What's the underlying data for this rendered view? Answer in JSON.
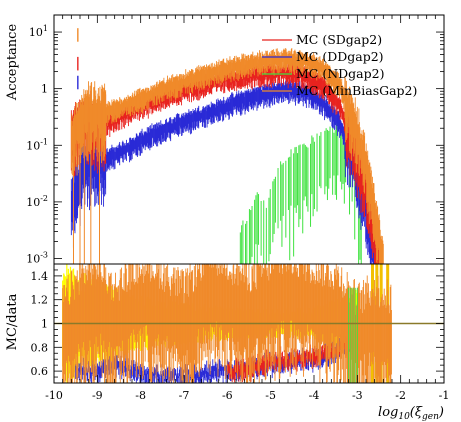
{
  "chart_data": [
    {
      "panel": "acceptance",
      "type": "scatter",
      "ylabel": "Acceptance",
      "yscale": "log",
      "ylim": [
        0.0008,
        20
      ],
      "xlim": [
        -10,
        -1
      ],
      "y_ticks": [
        {
          "value": 0.001,
          "mantissa": "10",
          "exp": "-3"
        },
        {
          "value": 0.01,
          "mantissa": "10",
          "exp": "-2"
        },
        {
          "value": 0.1,
          "mantissa": "10",
          "exp": "-1"
        },
        {
          "value": 1,
          "mantissa": "1",
          "exp": ""
        },
        {
          "value": 10,
          "mantissa": "10",
          "exp": "1"
        }
      ],
      "legend_position": "top-right",
      "legend": [
        {
          "label": "MC (SDgap2)",
          "color": "#e8231f"
        },
        {
          "label": "MC (DDgap2)",
          "color": "#2a2ad6"
        },
        {
          "label": "MC (NDgap2)",
          "color": "#3fe23f"
        },
        {
          "label": "MC (MinBiasGap2)",
          "color": "#f08a2a"
        }
      ],
      "series": [
        {
          "name": "MC (SDgap2)",
          "color": "#e8231f",
          "x": [
            -9.6,
            -9.3,
            -9.0,
            -8.6,
            -8.2,
            -7.8,
            -7.4,
            -7.0,
            -6.6,
            -6.2,
            -5.8,
            -5.4,
            -5.0,
            -4.6,
            -4.2,
            -3.8,
            -3.4,
            -3.1,
            -2.8,
            -2.5
          ],
          "y": [
            0.15,
            0.3,
            0.22,
            0.3,
            0.45,
            0.6,
            0.8,
            1.0,
            1.2,
            1.5,
            1.7,
            1.9,
            2.0,
            2.0,
            1.8,
            1.2,
            0.5,
            0.12,
            0.02,
            0.001
          ]
        },
        {
          "name": "MC (DDgap2)",
          "color": "#2a2ad6",
          "x": [
            -9.6,
            -9.3,
            -9.0,
            -8.6,
            -8.2,
            -7.8,
            -7.4,
            -7.0,
            -6.6,
            -6.2,
            -5.8,
            -5.4,
            -5.0,
            -4.6,
            -4.2,
            -3.8,
            -3.4,
            -3.1,
            -2.8,
            -2.6
          ],
          "y": [
            0.01,
            0.05,
            0.05,
            0.07,
            0.1,
            0.15,
            0.2,
            0.28,
            0.35,
            0.45,
            0.6,
            0.75,
            0.9,
            1.0,
            0.9,
            0.6,
            0.25,
            0.06,
            0.008,
            0.001
          ]
        },
        {
          "name": "MC (NDgap2)",
          "color": "#3fe23f",
          "x": [
            -5.7,
            -5.5,
            -5.3,
            -5.1,
            -4.9,
            -4.7,
            -4.5,
            -4.3,
            -4.1,
            -3.9,
            -3.7,
            -3.5,
            -3.3,
            -3.1,
            -2.9
          ],
          "y": [
            0.002,
            0.004,
            0.01,
            0.006,
            0.02,
            0.03,
            0.05,
            0.06,
            0.08,
            0.1,
            0.12,
            0.14,
            0.12,
            0.05,
            0.005
          ]
        },
        {
          "name": "MC (MinBiasGap2)",
          "color": "#f08a2a",
          "x": [
            -9.6,
            -9.3,
            -9.0,
            -8.6,
            -8.2,
            -7.8,
            -7.4,
            -7.0,
            -6.6,
            -6.2,
            -5.8,
            -5.4,
            -5.0,
            -4.6,
            -4.2,
            -3.8,
            -3.4,
            -3.1,
            -2.8,
            -2.4
          ],
          "y": [
            0.12,
            0.4,
            0.35,
            0.45,
            0.6,
            0.8,
            1.1,
            1.4,
            1.8,
            2.2,
            2.6,
            3.0,
            3.3,
            3.5,
            3.2,
            2.4,
            1.2,
            0.3,
            0.05,
            0.001
          ]
        }
      ],
      "isolated_points": [
        {
          "series": "MC (MinBiasGap2)",
          "x": -9.45,
          "y": 9.0
        },
        {
          "series": "MC (SDgap2)",
          "x": -9.45,
          "y": 2.8
        },
        {
          "series": "MC (DDgap2)",
          "x": -9.45,
          "y": 1.3
        }
      ]
    },
    {
      "panel": "ratio",
      "type": "scatter",
      "ylabel": "MC/data",
      "xlabel_base": "log",
      "xlabel_sub": "10",
      "xlabel_arg": "(ξ",
      "xlabel_arg_sub": "gen",
      "xlabel_end": ")",
      "ylim": [
        0.5,
        1.5
      ],
      "xlim": [
        -10,
        -1
      ],
      "y_ticks": [
        "0.6",
        "0.8",
        "1",
        "1.2",
        "1.4"
      ],
      "x_ticks": [
        "-10",
        "-9",
        "-8",
        "-7",
        "-6",
        "-5",
        "-4",
        "-3",
        "-2",
        "-1"
      ],
      "reference_line": 1,
      "uncertainty_band": {
        "color": "#ffff00",
        "x": [
          -9.8,
          -9.0,
          -8.0,
          -7.0,
          -6.0,
          -5.0,
          -4.0,
          -3.3,
          -3.0
        ],
        "half_width": [
          0.45,
          0.3,
          0.2,
          0.15,
          0.12,
          0.1,
          0.12,
          0.2,
          0.3
        ]
      },
      "series": [
        {
          "name": "MC (SDgap2)",
          "color": "#e8231f",
          "x": [
            -6.0,
            -5.5,
            -5.0,
            -4.5,
            -4.0,
            -3.5,
            -3.1
          ],
          "y": [
            0.6,
            0.62,
            0.68,
            0.7,
            0.72,
            0.78,
            0.9
          ]
        },
        {
          "name": "MC (DDgap2)",
          "color": "#2a2ad6",
          "x": [
            -9.5,
            -9.0,
            -8.5,
            -8.0,
            -7.5,
            -7.0,
            -6.5,
            -6.0,
            -5.5,
            -5.0,
            -4.5,
            -4.0,
            -3.5,
            -3.1
          ],
          "y": [
            0.6,
            0.6,
            0.65,
            0.58,
            0.55,
            0.55,
            0.58,
            0.6,
            0.62,
            0.65,
            0.68,
            0.7,
            0.75,
            0.85
          ]
        },
        {
          "name": "MC (MinBiasGap2)",
          "color": "#f08a2a",
          "x": [
            -9.8,
            -9.4,
            -9.0,
            -8.6,
            -8.2,
            -7.8,
            -7.4,
            -7.0,
            -6.6,
            -6.2,
            -5.8,
            -5.4,
            -5.0,
            -4.6,
            -4.2,
            -3.8,
            -3.4,
            -3.0,
            -2.6,
            -2.2
          ],
          "y": [
            1.0,
            1.2,
            1.3,
            1.1,
            1.25,
            1.3,
            1.2,
            1.1,
            1.3,
            1.35,
            1.25,
            1.2,
            1.3,
            1.35,
            1.3,
            1.25,
            1.2,
            1.0,
            1.1,
            1.0
          ]
        }
      ]
    }
  ]
}
